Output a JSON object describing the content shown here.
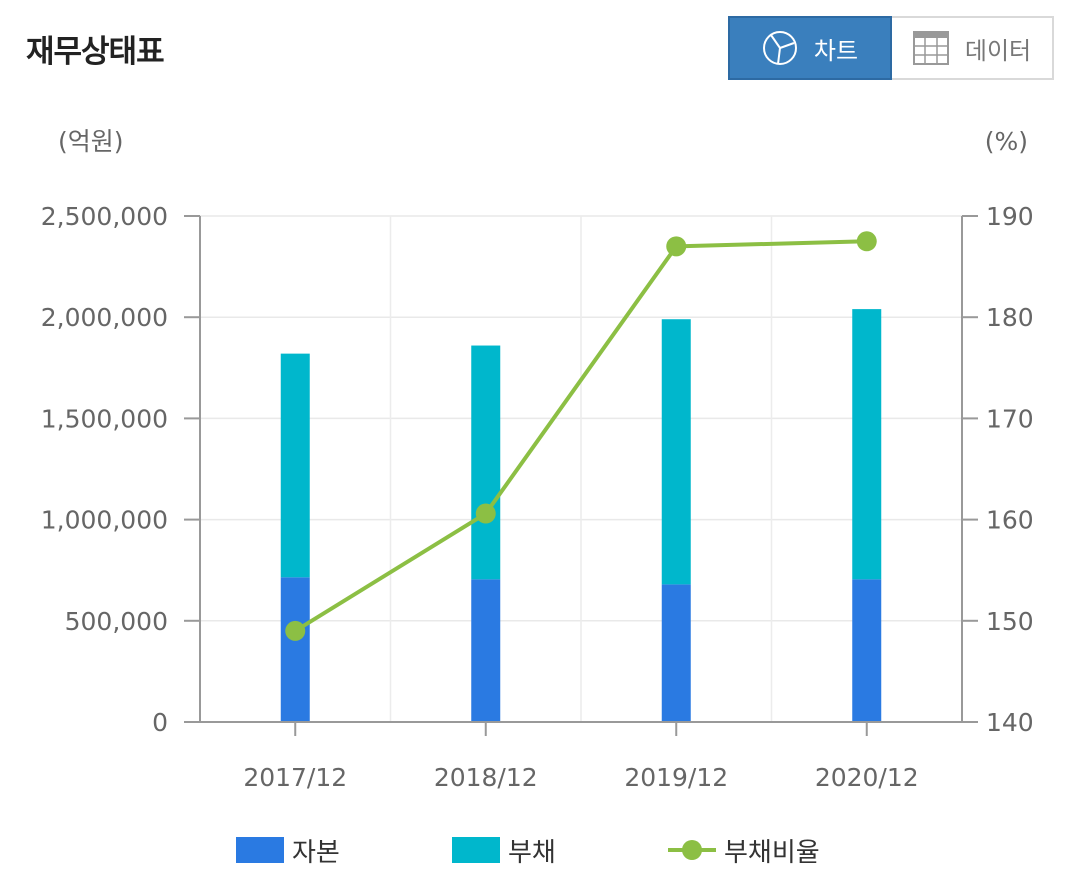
{
  "header": {
    "title": "재무상태표",
    "chart_label": "차트",
    "data_label": "데이터",
    "active_view": "chart"
  },
  "colors": {
    "capital": "#2a7ae2",
    "debt": "#00b7cc",
    "ratio": "#8cbf44",
    "toggle_active": "#3a7fbd"
  },
  "icons": {
    "chart": "pie-chart-icon",
    "data": "table-grid-icon"
  },
  "chart_data": {
    "type": "bar",
    "stacked": true,
    "categories": [
      "2017/12",
      "2018/12",
      "2019/12",
      "2020/12"
    ],
    "series": [
      {
        "name": "자본",
        "type": "bar",
        "axis": "left",
        "values": [
          715000,
          705000,
          680000,
          705000
        ]
      },
      {
        "name": "부채",
        "type": "bar",
        "axis": "left",
        "values": [
          1105000,
          1155000,
          1310000,
          1335000
        ]
      },
      {
        "name": "부채비율",
        "type": "line",
        "axis": "right",
        "values": [
          149.0,
          160.6,
          187.0,
          187.5
        ]
      }
    ],
    "yleft": {
      "unit": "(억원)",
      "range": [
        0,
        2500000
      ],
      "ticks": [
        0,
        500000,
        1000000,
        1500000,
        2000000,
        2500000
      ],
      "tick_labels": [
        "0",
        "500,000",
        "1,000,000",
        "1,500,000",
        "2,000,000",
        "2,500,000"
      ]
    },
    "yright": {
      "unit": "(%)",
      "range": [
        140,
        190
      ],
      "ticks": [
        140,
        150,
        160,
        170,
        180,
        190
      ],
      "tick_labels": [
        "140",
        "150",
        "160",
        "170",
        "180",
        "190"
      ]
    },
    "grid": true,
    "legend_position": "bottom"
  }
}
